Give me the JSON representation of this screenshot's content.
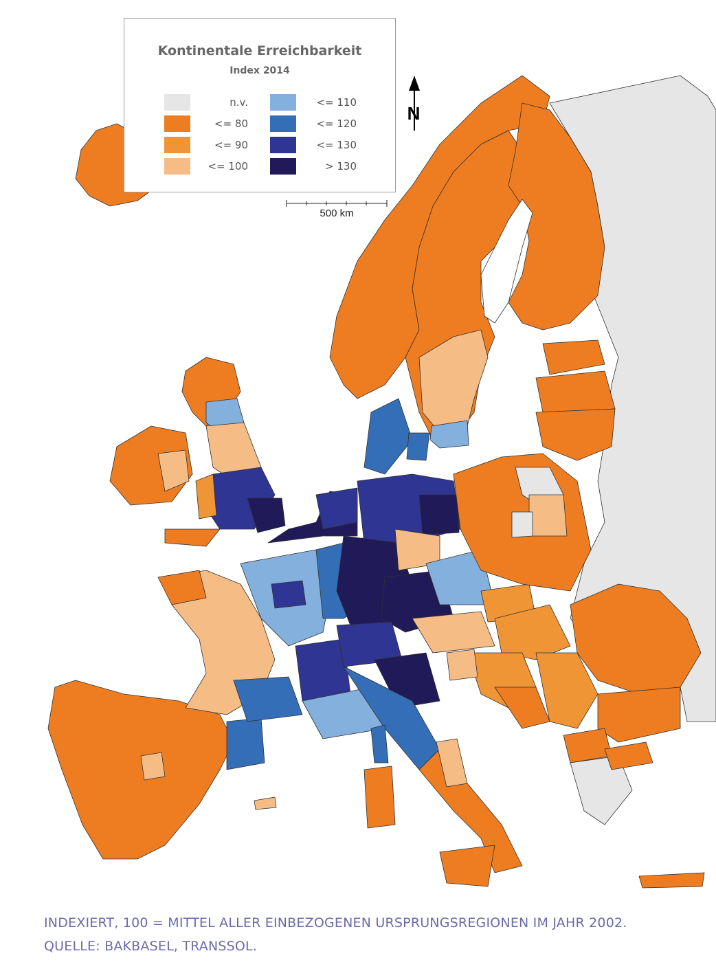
{
  "colors": {
    "ocean": "#ffffff",
    "na": "#e6e6e6",
    "le80": "#ee7d22",
    "le90": "#f09535",
    "le100": "#f5bd85",
    "le110": "#84b0dd",
    "le120": "#346eb6",
    "le130": "#2f3592",
    "gt130": "#211a58",
    "lake": "#ffffff",
    "border": "#303030",
    "footnote": "#6a6aaa"
  },
  "legend": {
    "title": "Kontinentale Erreichbarkeit",
    "subtitle": "Index 2014",
    "items": [
      {
        "label": "n.v.",
        "color": "#e6e6e6"
      },
      {
        "label": "<= 80",
        "color": "#ee7d22"
      },
      {
        "label": "<= 90",
        "color": "#f09535"
      },
      {
        "label": "<= 100",
        "color": "#f5bd85"
      },
      {
        "label": "<= 110",
        "color": "#84b0dd"
      },
      {
        "label": "<= 120",
        "color": "#346eb6"
      },
      {
        "label": "<= 130",
        "color": "#2f3592"
      },
      {
        "label": "> 130",
        "color": "#211a58"
      }
    ]
  },
  "scale": {
    "label": "500 km"
  },
  "north": {
    "label": "N"
  },
  "footnotes": {
    "line1": "INDEXIERT, 100 = MITTEL ALLER EINBEZOGENEN URSPRUNGSREGIONEN IM JAHR 2002.",
    "line2": "QUELLE: BAKBASEL, TRANSSOL."
  }
}
